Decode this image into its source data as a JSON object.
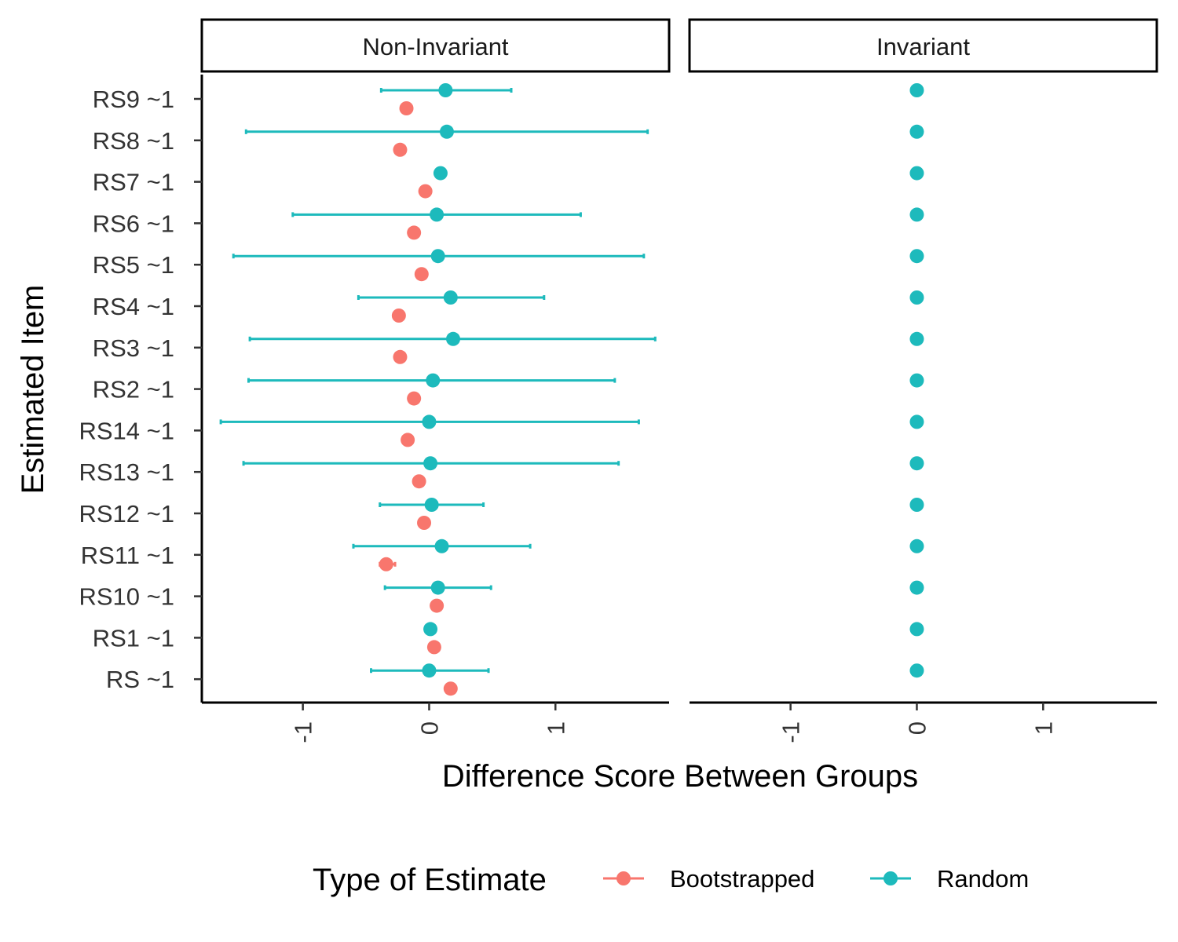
{
  "colors": {
    "Bootstrapped": "#F8766D",
    "Random": "#1DBABC"
  },
  "chart_data": {
    "type": "scatter",
    "subtype": "dot-and-errorbar (faceted)",
    "xlabel": "Difference Score Between Groups",
    "ylabel": "Estimated Item",
    "xlim": [
      -1.8,
      1.9
    ],
    "x_ticks": [
      "-1",
      "0",
      "1"
    ],
    "x_tick_values": [
      -1,
      0,
      1
    ],
    "categories": [
      "RS9 ~1",
      "RS8 ~1",
      "RS7 ~1",
      "RS6 ~1",
      "RS5 ~1",
      "RS4 ~1",
      "RS3 ~1",
      "RS2 ~1",
      "RS14 ~1",
      "RS13 ~1",
      "RS12 ~1",
      "RS11 ~1",
      "RS10 ~1",
      "RS1 ~1",
      "RS ~1"
    ],
    "legend": {
      "title": "Type of Estimate",
      "position": "bottom",
      "entries": [
        "Bootstrapped",
        "Random"
      ]
    },
    "grid": false,
    "panels": [
      {
        "label": "Non-Invariant",
        "series": [
          {
            "name": "Random",
            "values": [
              0.13,
              0.14,
              0.09,
              0.06,
              0.07,
              0.17,
              0.19,
              0.03,
              0.0,
              0.01,
              0.02,
              0.1,
              0.07,
              0.01,
              0.0
            ],
            "lower": [
              -0.38,
              -1.45,
              0.09,
              -1.08,
              -1.55,
              -0.56,
              -1.42,
              -1.43,
              -1.65,
              -1.47,
              -0.39,
              -0.6,
              -0.35,
              0.01,
              -0.46
            ],
            "upper": [
              0.65,
              1.73,
              0.09,
              1.2,
              1.7,
              0.91,
              1.79,
              1.47,
              1.66,
              1.5,
              0.43,
              0.8,
              0.49,
              0.01,
              0.47
            ]
          },
          {
            "name": "Bootstrapped",
            "values": [
              -0.18,
              -0.23,
              -0.03,
              -0.12,
              -0.06,
              -0.24,
              -0.23,
              -0.12,
              -0.17,
              -0.08,
              -0.04,
              -0.34,
              0.06,
              0.04,
              0.17
            ],
            "lower": [
              -0.18,
              -0.23,
              -0.03,
              -0.12,
              -0.06,
              -0.24,
              -0.23,
              -0.12,
              -0.17,
              -0.08,
              -0.04,
              -0.39,
              0.06,
              0.04,
              0.17
            ],
            "upper": [
              -0.18,
              -0.23,
              -0.03,
              -0.12,
              -0.06,
              -0.24,
              -0.23,
              -0.12,
              -0.17,
              -0.08,
              -0.04,
              -0.27,
              0.06,
              0.04,
              0.17
            ]
          }
        ]
      },
      {
        "label": "Invariant",
        "series": [
          {
            "name": "Random",
            "values": [
              0,
              0,
              0,
              0,
              0,
              0,
              0,
              0,
              0,
              0,
              0,
              0,
              0,
              0,
              0
            ],
            "lower": [
              0,
              0,
              0,
              0,
              0,
              0,
              0,
              0,
              0,
              0,
              0,
              0,
              0,
              0,
              0
            ],
            "upper": [
              0,
              0,
              0,
              0,
              0,
              0,
              0,
              0,
              0,
              0,
              0,
              0,
              0,
              0,
              0
            ]
          },
          {
            "name": "Bootstrapped",
            "values": [],
            "lower": [],
            "upper": []
          }
        ]
      }
    ]
  }
}
